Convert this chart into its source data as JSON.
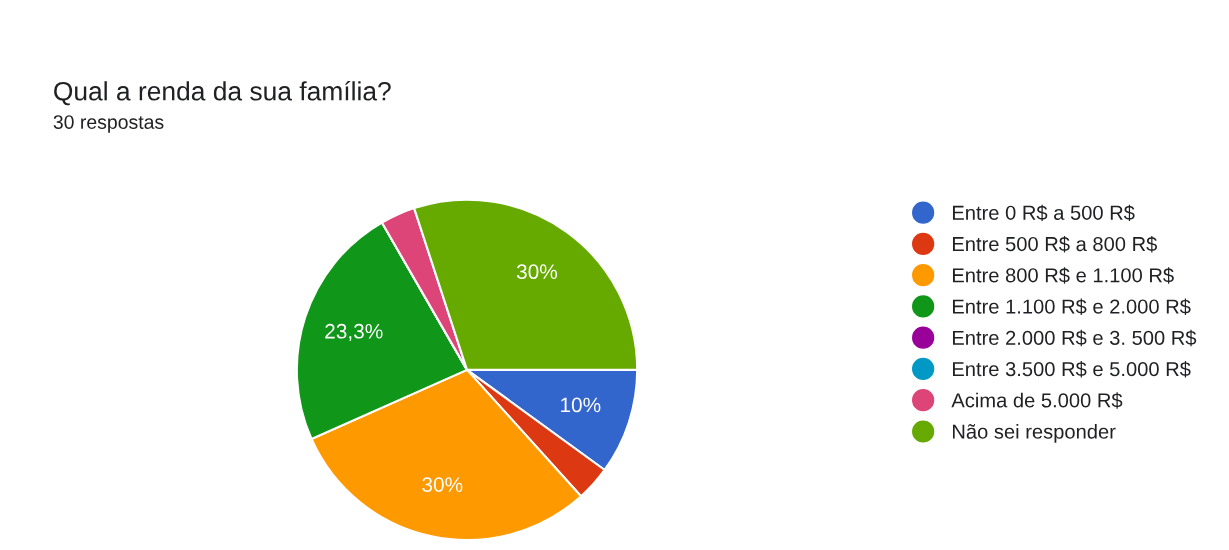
{
  "chart_data": {
    "type": "pie",
    "title": "Qual a renda da sua família?",
    "subtitle": "30 respostas",
    "categories": [
      "Entre 0 R$ a 500 R$",
      "Entre 500 R$ a 800 R$",
      "Entre 800 R$ e 1.100 R$",
      "Entre 1.100 R$ e 2.000 R$",
      "Entre 2.000 R$ e 3. 500 R$",
      "Entre 3.500 R$ e 5.000 R$",
      "Acima de 5.000 R$",
      "Não sei responder"
    ],
    "values": [
      10,
      3.3,
      30,
      23.3,
      0,
      0,
      3.3,
      30
    ],
    "value_labels": [
      "10%",
      null,
      "30%",
      "23,3%",
      null,
      null,
      null,
      "30%"
    ],
    "colors": [
      "#3366cc",
      "#dc3912",
      "#ff9900",
      "#109618",
      "#990099",
      "#0099c6",
      "#dd4477",
      "#66aa00"
    ],
    "legend": "right"
  }
}
